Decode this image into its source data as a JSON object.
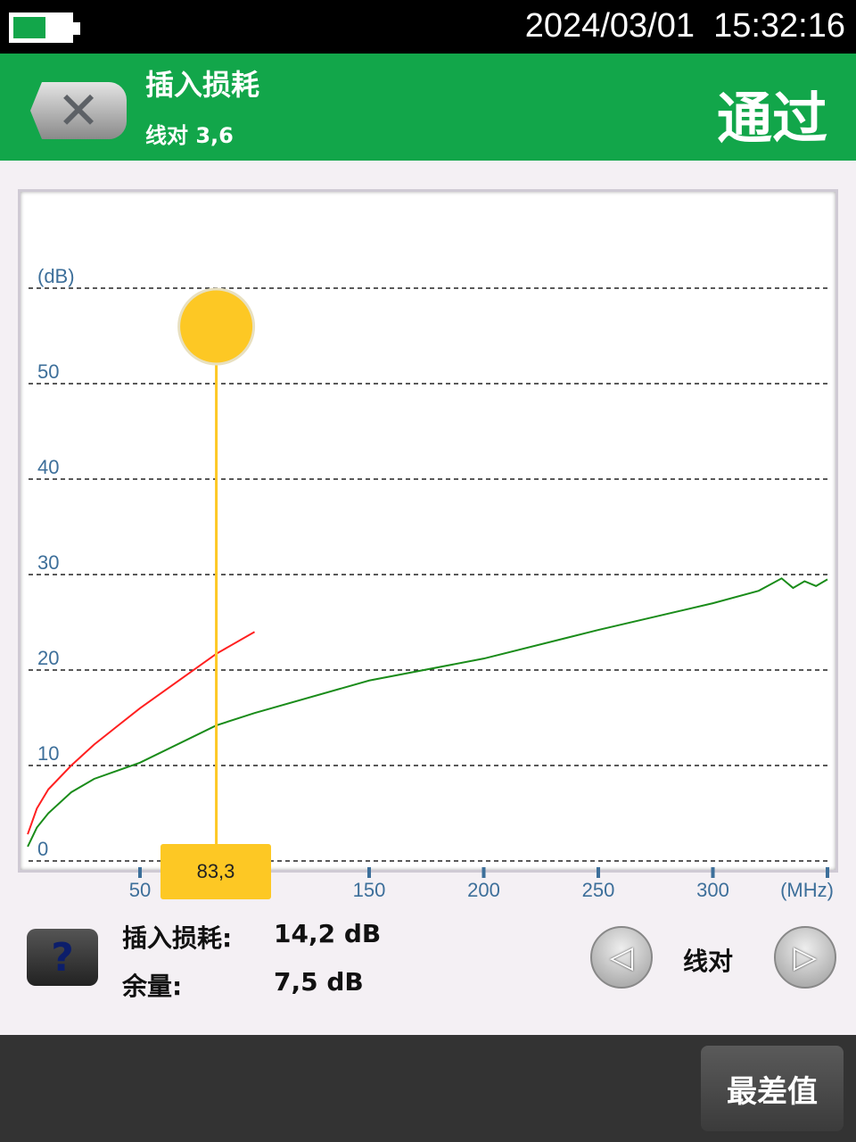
{
  "status": {
    "battery_level": 0.55,
    "datetime": "2024/03/01  15:32:16"
  },
  "header": {
    "title": "插入损耗",
    "subtitle": "线对 3,6",
    "result": "通过",
    "close_icon": "close-x-icon",
    "color": "#12a64a"
  },
  "chart_data": {
    "type": "line",
    "ylabel": "(dB)",
    "xlabel": "(MHz)",
    "xlim": [
      0,
      350
    ],
    "ylim": [
      0,
      60
    ],
    "x_ticks": [
      "50",
      "150",
      "200",
      "250",
      "300"
    ],
    "y_ticks": [
      "0",
      "10",
      "20",
      "30",
      "40",
      "50"
    ],
    "grid": true,
    "series": [
      {
        "color": "#1a8c1a",
        "points": [
          [
            1,
            1.5
          ],
          [
            5,
            3.5
          ],
          [
            10,
            5.0
          ],
          [
            20,
            7.2
          ],
          [
            30,
            8.6
          ],
          [
            50,
            10.3
          ],
          [
            83.3,
            14.2
          ],
          [
            100,
            15.5
          ],
          [
            150,
            18.9
          ],
          [
            200,
            21.2
          ],
          [
            250,
            24.2
          ],
          [
            300,
            27.0
          ],
          [
            320,
            28.3
          ],
          [
            330,
            29.6
          ],
          [
            335,
            28.6
          ],
          [
            340,
            29.3
          ],
          [
            345,
            28.8
          ],
          [
            350,
            29.5
          ]
        ]
      },
      {
        "color": "#ff2020",
        "points": [
          [
            1,
            2.8
          ],
          [
            5,
            5.5
          ],
          [
            10,
            7.5
          ],
          [
            20,
            10.0
          ],
          [
            30,
            12.2
          ],
          [
            50,
            16.0
          ],
          [
            83.3,
            21.7
          ],
          [
            100,
            24.0
          ]
        ]
      }
    ],
    "cursor": {
      "x": 83.3,
      "label": "83,3",
      "color": "#fdc824"
    }
  },
  "readout": {
    "il_label": "插入损耗:",
    "il_value": "14,2 dB",
    "margin_label": "余量:",
    "margin_value": "7,5 dB"
  },
  "help_label": "?",
  "pair_nav": {
    "label": "线对",
    "prev_icon": "triangle-left-icon",
    "next_icon": "triangle-right-icon"
  },
  "worst_button": "最差值"
}
